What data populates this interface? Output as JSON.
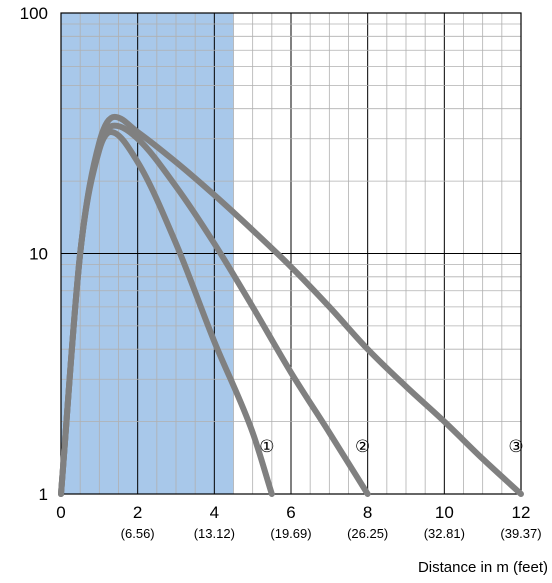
{
  "chart_data": {
    "type": "line",
    "xlabel": "Distance in m (feet)",
    "ylabel": "",
    "x_axis": {
      "range": [
        0,
        12
      ],
      "scale": "linear",
      "ticks": [
        {
          "value": 0,
          "label": "0",
          "sublabel": ""
        },
        {
          "value": 2,
          "label": "2",
          "sublabel": "(6.56)"
        },
        {
          "value": 4,
          "label": "4",
          "sublabel": "(13.12)"
        },
        {
          "value": 6,
          "label": "6",
          "sublabel": "(19.69)"
        },
        {
          "value": 8,
          "label": "8",
          "sublabel": "(26.25)"
        },
        {
          "value": 10,
          "label": "10",
          "sublabel": "(32.81)"
        },
        {
          "value": 12,
          "label": "12",
          "sublabel": "(39.37)"
        }
      ]
    },
    "y_axis": {
      "range": [
        1,
        100
      ],
      "scale": "log",
      "ticks": [
        {
          "value": 1,
          "label": "1"
        },
        {
          "value": 10,
          "label": "10"
        },
        {
          "value": 100,
          "label": "100"
        }
      ]
    },
    "grid": true,
    "highlight_region": {
      "x": [
        0,
        4.5
      ],
      "color": "#a8c8ea"
    },
    "line_color": "#808080",
    "series": [
      {
        "name": "①",
        "points": [
          [
            0,
            1
          ],
          [
            0.5,
            10
          ],
          [
            1,
            27
          ],
          [
            1.3,
            32
          ],
          [
            2,
            24
          ],
          [
            3,
            11
          ],
          [
            4,
            4.3
          ],
          [
            5,
            1.8
          ],
          [
            5.5,
            1
          ]
        ]
      },
      {
        "name": "②",
        "points": [
          [
            0,
            1
          ],
          [
            0.5,
            10
          ],
          [
            1,
            28
          ],
          [
            1.4,
            34
          ],
          [
            2,
            30
          ],
          [
            3,
            19
          ],
          [
            4,
            11
          ],
          [
            5,
            6
          ],
          [
            6,
            3.2
          ],
          [
            7,
            1.8
          ],
          [
            8,
            1
          ]
        ]
      },
      {
        "name": "③",
        "points": [
          [
            0,
            1
          ],
          [
            0.5,
            10
          ],
          [
            1,
            29
          ],
          [
            1.4,
            37
          ],
          [
            2,
            32
          ],
          [
            3,
            24
          ],
          [
            4,
            17.5
          ],
          [
            5,
            12.5
          ],
          [
            6,
            8.8
          ],
          [
            7,
            6
          ],
          [
            8,
            4
          ],
          [
            9,
            2.8
          ],
          [
            10,
            2
          ],
          [
            11,
            1.4
          ],
          [
            12,
            1
          ]
        ]
      }
    ]
  }
}
